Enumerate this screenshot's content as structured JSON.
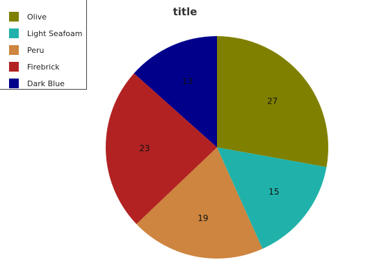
{
  "chart_data": {
    "type": "pie",
    "title": "title",
    "legend_position": "top-left",
    "slices": [
      {
        "label": "Olive",
        "value": 27,
        "color": "#808000"
      },
      {
        "label": "Light Seafoam",
        "value": 15,
        "color": "#20b2aa"
      },
      {
        "label": "Peru",
        "value": 19,
        "color": "#cd853f"
      },
      {
        "label": "Firebrick",
        "value": 23,
        "color": "#b22222"
      },
      {
        "label": "Dark Blue",
        "value": 13,
        "color": "#00008b"
      }
    ]
  }
}
